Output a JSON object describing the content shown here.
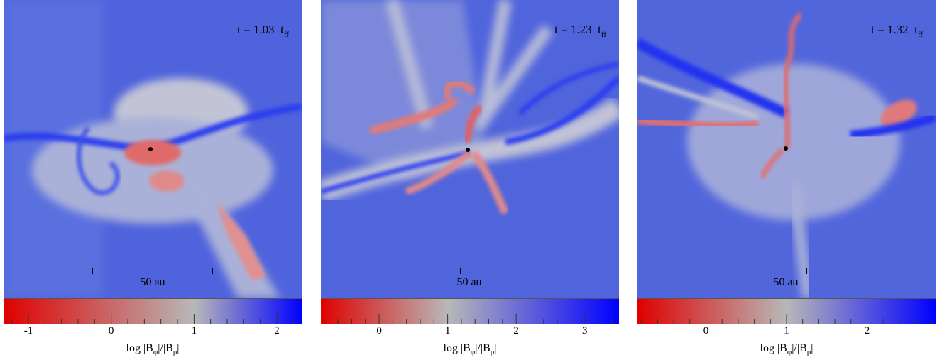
{
  "panels": [
    {
      "time_value": "t = 1.03",
      "time_unit": "t",
      "time_subscript": "ff",
      "scalebar_label": "50 au",
      "colorbar": {
        "ticks": [
          -1,
          0,
          1,
          2
        ],
        "tick_labels": [
          "-1",
          "0",
          "1",
          "2"
        ],
        "range": [
          -1.3,
          2.3
        ],
        "title_main": "log |B",
        "title_sub1": "φ",
        "title_mid": "|/|B",
        "title_sub2": "p",
        "title_end": "|"
      }
    },
    {
      "time_value": "t = 1.23",
      "time_unit": "t",
      "time_subscript": "ff",
      "scalebar_label": "50 au",
      "colorbar": {
        "ticks": [
          0,
          1,
          2,
          3
        ],
        "tick_labels": [
          "0",
          "1",
          "2",
          "3"
        ],
        "range": [
          -0.85,
          3.5
        ],
        "title_main": "log |B",
        "title_sub1": "φ",
        "title_mid": "|/|B",
        "title_sub2": "p",
        "title_end": "|"
      }
    },
    {
      "time_value": "t = 1.32",
      "time_unit": "t",
      "time_subscript": "ff",
      "scalebar_label": "50 au",
      "colorbar": {
        "ticks": [
          0,
          1,
          2
        ],
        "tick_labels": [
          "0",
          "1",
          "2"
        ],
        "range": [
          -0.85,
          2.85
        ],
        "title_main": "log |B",
        "title_sub1": "φ",
        "title_mid": "|/|B",
        "title_sub2": "p",
        "title_end": "|"
      }
    }
  ],
  "colors": {
    "low": "#e00000",
    "mid": "#b8b8b8",
    "high": "#0000ff",
    "background_field": "#4a5fe0"
  }
}
